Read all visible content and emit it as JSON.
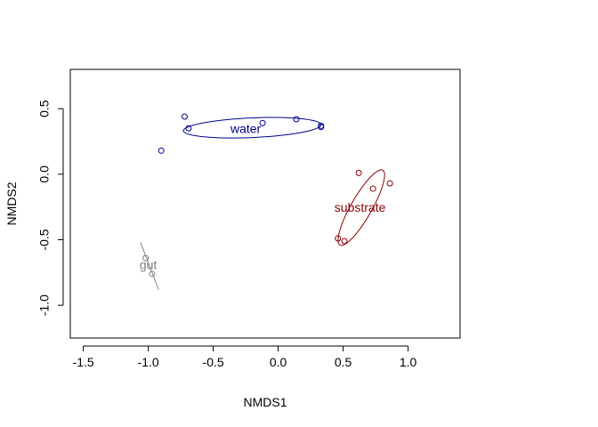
{
  "chart_data": {
    "type": "scatter",
    "xlabel": "NMDS1",
    "ylabel": "NMDS2",
    "xlim": [
      -1.6,
      1.4
    ],
    "ylim": [
      -1.25,
      0.8
    ],
    "xticks": [
      -1.5,
      -1.0,
      -0.5,
      0.0,
      0.5,
      1.0
    ],
    "xtick_labels": [
      "-1.5",
      "-1.0",
      "-0.5",
      "0.0",
      "0.5",
      "1.0"
    ],
    "yticks": [
      -1.0,
      -0.5,
      0.0,
      0.5
    ],
    "ytick_labels": [
      "-1.0",
      "-0.5",
      "0.0",
      "0.5"
    ],
    "grid": false,
    "series": [
      {
        "name": "water",
        "color": "#00008B",
        "points": [
          [
            -0.72,
            0.44
          ],
          [
            -0.69,
            0.35
          ],
          [
            -0.9,
            0.18
          ],
          [
            -0.12,
            0.39
          ],
          [
            0.14,
            0.42
          ],
          [
            0.33,
            0.37
          ],
          [
            0.33,
            0.36
          ]
        ],
        "label_at": [
          -0.25,
          0.34
        ],
        "ellipse": {
          "cx": -0.2,
          "cy": 0.355,
          "rx": 0.53,
          "ry": 0.075,
          "angle_deg": 2.5
        }
      },
      {
        "name": "substrate",
        "color": "#8B0000",
        "points": [
          [
            0.62,
            0.01
          ],
          [
            0.86,
            -0.07
          ],
          [
            0.73,
            -0.11
          ],
          [
            0.46,
            -0.49
          ],
          [
            0.51,
            -0.51
          ]
        ],
        "label_at": [
          0.63,
          -0.26
        ],
        "ellipse": {
          "cx": 0.64,
          "cy": -0.255,
          "rx": 0.33,
          "ry": 0.08,
          "angle_deg": 60
        }
      },
      {
        "name": "gut",
        "color": "#808080",
        "points": [
          [
            -1.02,
            -0.64
          ],
          [
            -0.97,
            -0.76
          ]
        ],
        "label_at": [
          -1.0,
          -0.7
        ],
        "segment": [
          [
            -1.06,
            -0.52
          ],
          [
            -0.92,
            -0.88
          ]
        ]
      }
    ]
  }
}
